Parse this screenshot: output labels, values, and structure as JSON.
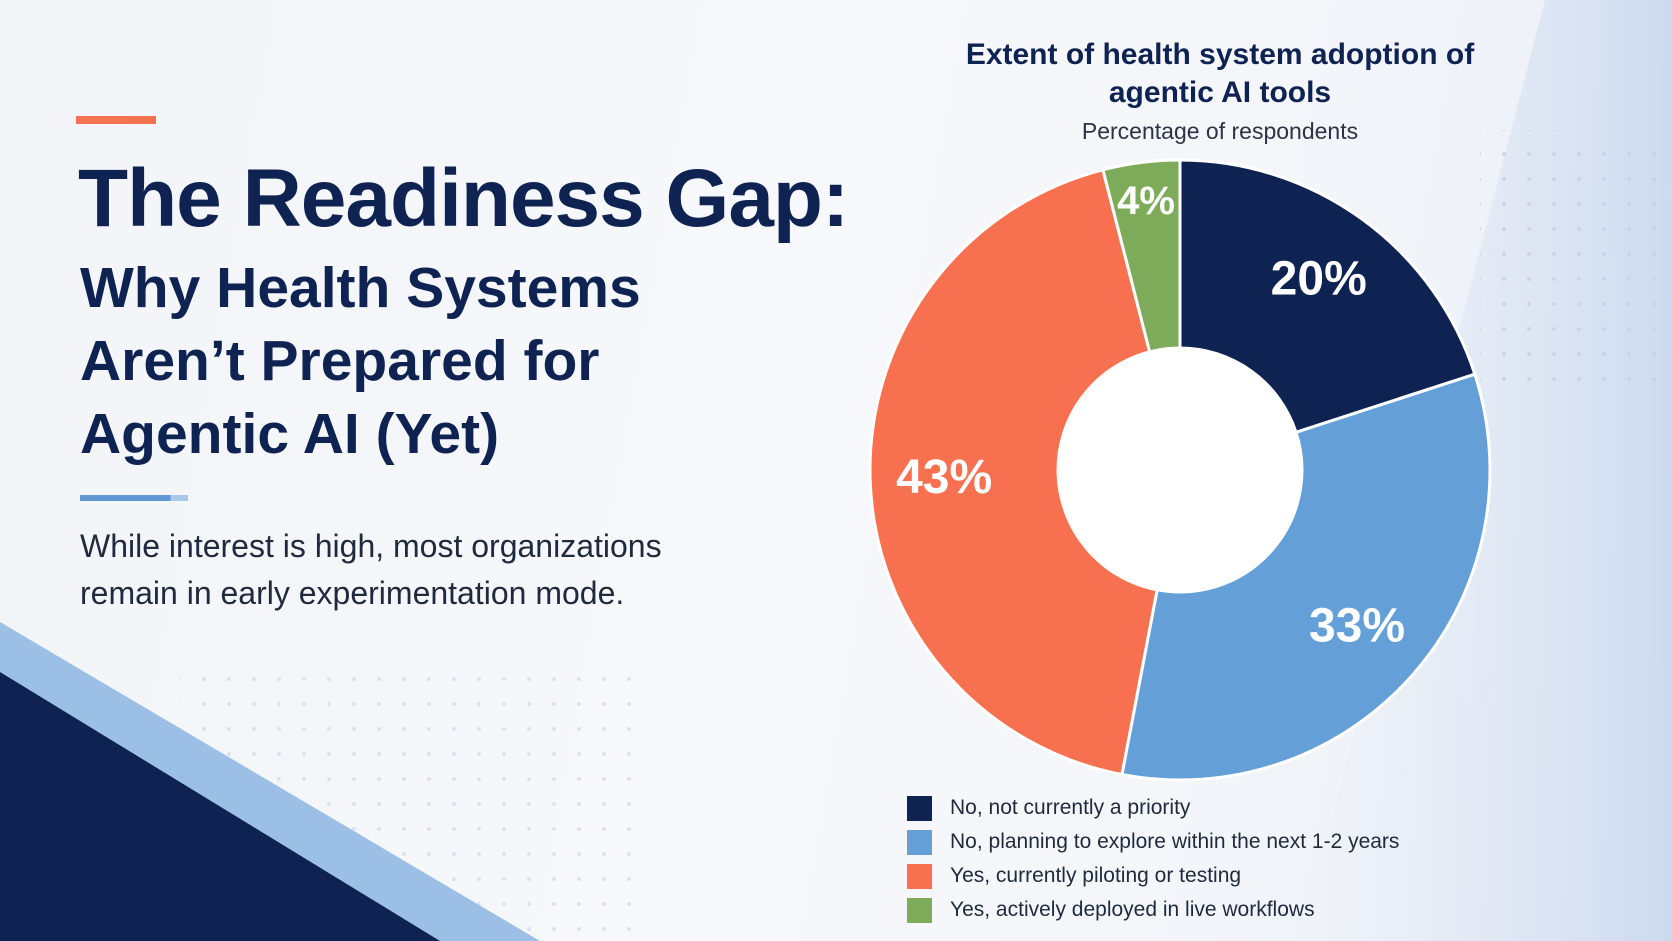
{
  "headline": {
    "title": "The Readiness Gap:",
    "subtitle": "Why Health Systems Aren’t Prepared for Agentic AI (Yet)",
    "lead": "While interest is high, most organizations remain in early experimentation mode."
  },
  "colors": {
    "navy": "#0f2352",
    "light_blue": "#649fd8",
    "coral": "#f7704f",
    "green": "#7eab5a",
    "accent": "#f27251"
  },
  "chart_data": {
    "type": "pie",
    "title": "Extent of health system adoption of agentic AI tools",
    "subtitle": "Percentage of respondents",
    "unit": "%",
    "donut": true,
    "legend_position": "bottom",
    "slices": [
      {
        "label": "No, not currently a priority",
        "value": 20,
        "display": "20%",
        "color": "#0f2352"
      },
      {
        "label": "No, planning to explore within the next 1-2 years",
        "value": 33,
        "display": "33%",
        "color": "#649fd8"
      },
      {
        "label": "Yes, currently piloting or testing",
        "value": 43,
        "display": "43%",
        "color": "#f7704f"
      },
      {
        "label": "Yes, actively deployed in live workflows",
        "value": 4,
        "display": "4%",
        "color": "#7eab5a"
      }
    ]
  }
}
